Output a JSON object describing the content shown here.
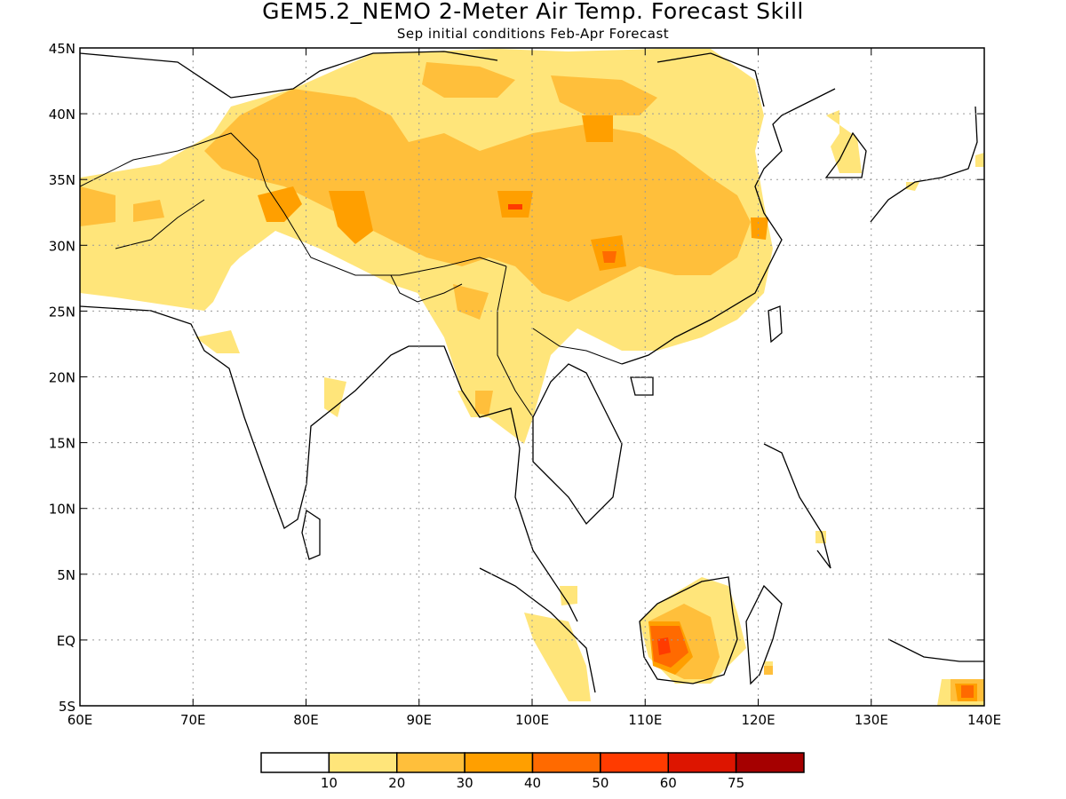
{
  "title": "GEM5.2_NEMO 2-Meter Air Temp. Forecast Skill",
  "subtitle": "Sep initial conditions  Feb-Apr Forecast",
  "map": {
    "lon_range": [
      60,
      140
    ],
    "lat_range": [
      -5,
      45
    ],
    "lon_ticks": [
      {
        "value": 60,
        "label": "60E"
      },
      {
        "value": 70,
        "label": "70E"
      },
      {
        "value": 80,
        "label": "80E"
      },
      {
        "value": 90,
        "label": "90E"
      },
      {
        "value": 100,
        "label": "100E"
      },
      {
        "value": 110,
        "label": "110E"
      },
      {
        "value": 120,
        "label": "120E"
      },
      {
        "value": 130,
        "label": "130E"
      },
      {
        "value": 140,
        "label": "140E"
      }
    ],
    "lat_ticks": [
      {
        "value": 45,
        "label": "45N"
      },
      {
        "value": 40,
        "label": "40N"
      },
      {
        "value": 35,
        "label": "35N"
      },
      {
        "value": 30,
        "label": "30N"
      },
      {
        "value": 25,
        "label": "25N"
      },
      {
        "value": 20,
        "label": "20N"
      },
      {
        "value": 15,
        "label": "15N"
      },
      {
        "value": 10,
        "label": "10N"
      },
      {
        "value": 5,
        "label": "5N"
      },
      {
        "value": 0,
        "label": "EQ"
      },
      {
        "value": -5,
        "label": "5S"
      }
    ],
    "grid": true
  },
  "colorbar": {
    "colors": [
      "#ffffff",
      "#ffe57a",
      "#ffbf3b",
      "#ff9f00",
      "#ff6a00",
      "#ff3b00",
      "#dd1500",
      "#a50000"
    ],
    "labels": [
      "10",
      "20",
      "30",
      "40",
      "50",
      "60",
      "75"
    ]
  }
}
